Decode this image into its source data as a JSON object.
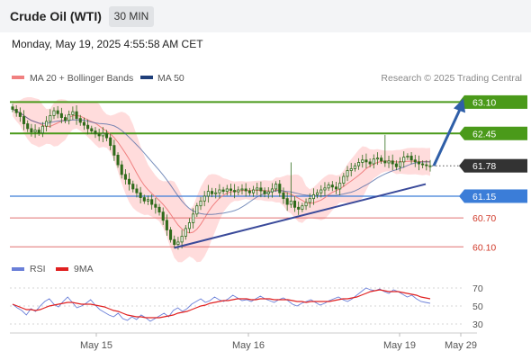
{
  "header": {
    "title": "Crude Oil (WTI)",
    "timeframe": "30 MIN",
    "datetime": "Monday, May 19, 2025 4:55:58 AM CET"
  },
  "legend": {
    "ma20": "MA 20 + Bollinger Bands",
    "ma50": "MA 50",
    "credit": "Research © 2025 Trading Central",
    "rsi": "RSI",
    "rsi_ma": "9MA"
  },
  "colors": {
    "ma20": "#f08080",
    "ma50": "#4060a0",
    "bollinger_fill": "#ffd0d0",
    "resistance": "#4a9a1a",
    "support": "#3b7dd8",
    "minor_level": "#e07070",
    "trendline": "#3a4a9a",
    "arrow": "#2f5fa8",
    "candle": "#2f6b1a",
    "current_price": "#333333",
    "rsi": "#6a7fd8",
    "rsi_ma": "#e02020"
  },
  "chart_data": [
    {
      "type": "candlestick",
      "price_axis": {
        "range": [
          59.9,
          63.35
        ],
        "side": "right"
      },
      "x_axis_labels": [
        "May 15",
        "May 16",
        "May 19",
        "May 29"
      ],
      "levels": [
        {
          "label": "63.10",
          "value": 63.1,
          "kind": "resistance"
        },
        {
          "label": "62.45",
          "value": 62.45,
          "kind": "resistance"
        },
        {
          "label": "61.78",
          "value": 61.78,
          "kind": "current"
        },
        {
          "label": "61.15",
          "value": 61.15,
          "kind": "support"
        },
        {
          "label": "60.70",
          "value": 60.7,
          "kind": "minor"
        },
        {
          "label": "60.10",
          "value": 60.1,
          "kind": "minor"
        }
      ],
      "closes": [
        62.95,
        62.88,
        62.8,
        62.65,
        62.55,
        62.48,
        62.52,
        62.46,
        62.6,
        62.7,
        62.82,
        62.92,
        62.86,
        62.78,
        62.72,
        62.84,
        62.9,
        62.76,
        62.68,
        62.62,
        62.55,
        62.5,
        62.44,
        62.4,
        62.45,
        62.36,
        62.2,
        62.0,
        61.8,
        61.6,
        61.5,
        61.4,
        61.3,
        61.22,
        61.12,
        61.05,
        61.08,
        60.98,
        60.92,
        60.82,
        60.65,
        60.45,
        60.25,
        60.15,
        60.2,
        60.32,
        60.48,
        60.6,
        60.78,
        60.95,
        61.05,
        61.15,
        61.25,
        61.2,
        61.22,
        61.28,
        61.25,
        61.3,
        61.27,
        61.24,
        61.28,
        61.3,
        61.26,
        61.22,
        61.28,
        61.32,
        61.26,
        61.2,
        61.24,
        61.3,
        61.4,
        61.22,
        61.1,
        60.98,
        61.05,
        60.92,
        60.88,
        60.95,
        61.02,
        61.1,
        61.18,
        61.22,
        61.28,
        61.32,
        61.38,
        61.34,
        61.3,
        61.42,
        61.56,
        61.68,
        61.72,
        61.78,
        61.85,
        61.9,
        61.86,
        61.82,
        61.92,
        61.94,
        61.88,
        61.84,
        61.88,
        61.82,
        61.76,
        61.86,
        61.96,
        61.98,
        61.9,
        61.86,
        61.82,
        61.8,
        61.78,
        61.78
      ],
      "bollinger_and_ma": "shown as smooth bands around price"
    },
    {
      "type": "line",
      "name": "RSI",
      "y_ticks": [
        30,
        50,
        70
      ],
      "ylim": [
        20,
        80
      ],
      "series": [
        {
          "name": "RSI",
          "values": [
            52,
            48,
            45,
            40,
            47,
            44,
            50,
            55,
            58,
            52,
            49,
            55,
            60,
            54,
            48,
            50,
            53,
            57,
            51,
            46,
            43,
            40,
            38,
            42,
            36,
            34,
            38,
            35,
            40,
            37,
            33,
            36,
            39,
            42,
            38,
            45,
            48,
            44,
            47,
            52,
            55,
            58,
            54,
            56,
            60,
            57,
            55,
            58,
            62,
            59,
            56,
            57,
            55,
            58,
            61,
            58,
            56,
            54,
            57,
            59,
            56,
            52,
            50,
            53,
            55,
            57,
            54,
            51,
            53,
            56,
            58,
            60,
            57,
            55,
            58,
            62,
            66,
            70,
            68,
            67,
            69,
            66,
            64,
            68,
            66,
            63,
            60,
            62,
            58,
            55,
            54,
            53
          ]
        },
        {
          "name": "9MA",
          "values": [
            52,
            50,
            48,
            46,
            46,
            45,
            46,
            48,
            50,
            51,
            52,
            53,
            54,
            54,
            53,
            52,
            52,
            52,
            51,
            50,
            49,
            47,
            45,
            44,
            42,
            40,
            39,
            38,
            38,
            37,
            37,
            37,
            37,
            38,
            39,
            40,
            42,
            43,
            44,
            46,
            48,
            50,
            51,
            53,
            54,
            55,
            56,
            56,
            57,
            58,
            58,
            58,
            57,
            57,
            58,
            58,
            58,
            57,
            57,
            57,
            57,
            56,
            55,
            55,
            54,
            55,
            55,
            55,
            55,
            55,
            56,
            57,
            58,
            58,
            59,
            60,
            62,
            64,
            66,
            67,
            68,
            67,
            66,
            66,
            66,
            65,
            64,
            63,
            62,
            60,
            59,
            58
          ]
        }
      ]
    }
  ]
}
